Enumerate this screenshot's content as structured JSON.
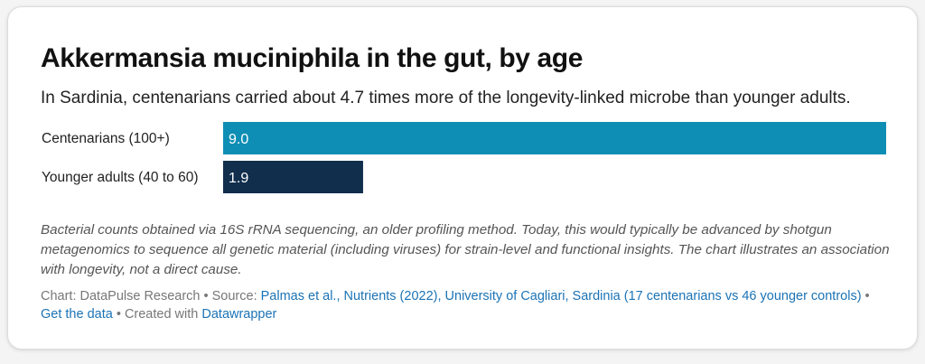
{
  "title": "Akkermansia muciniphila in the gut, by age",
  "subtitle": "In Sardinia, centenarians carried about 4.7 times more of the longevity-linked microbe than younger adults.",
  "chart_data": {
    "type": "bar",
    "orientation": "horizontal",
    "categories": [
      "Centenarians (100+)",
      "Younger adults (40 to 60)"
    ],
    "values": [
      9.0,
      1.9
    ],
    "value_labels": [
      "9.0",
      "1.9"
    ],
    "colors": [
      "#0e8eb5",
      "#112e4d"
    ],
    "xlim": [
      0,
      9.0
    ],
    "grid": false,
    "legend": "none"
  },
  "notes": "Bacterial counts obtained via 16S rRNA sequencing, an older profiling method. Today, this would typically be advanced by shotgun metagenomics to sequence all genetic material (including viruses) for strain-level and functional insights. The chart illustrates an association with longevity, not a direct cause.",
  "footer": {
    "chart_by": "Chart: DataPulse Research",
    "sep1": " • Source: ",
    "source_link": "Palmas et al., Nutrients (2022), University of Cagliari, Sardinia (17 centenarians vs 46 younger controls)",
    "sep2": " • ",
    "data_link": "Get the data",
    "sep3": " • Created with ",
    "tool_link": "Datawrapper"
  },
  "colors": {
    "link": "#1b73b5",
    "footer_text": "#777777"
  }
}
